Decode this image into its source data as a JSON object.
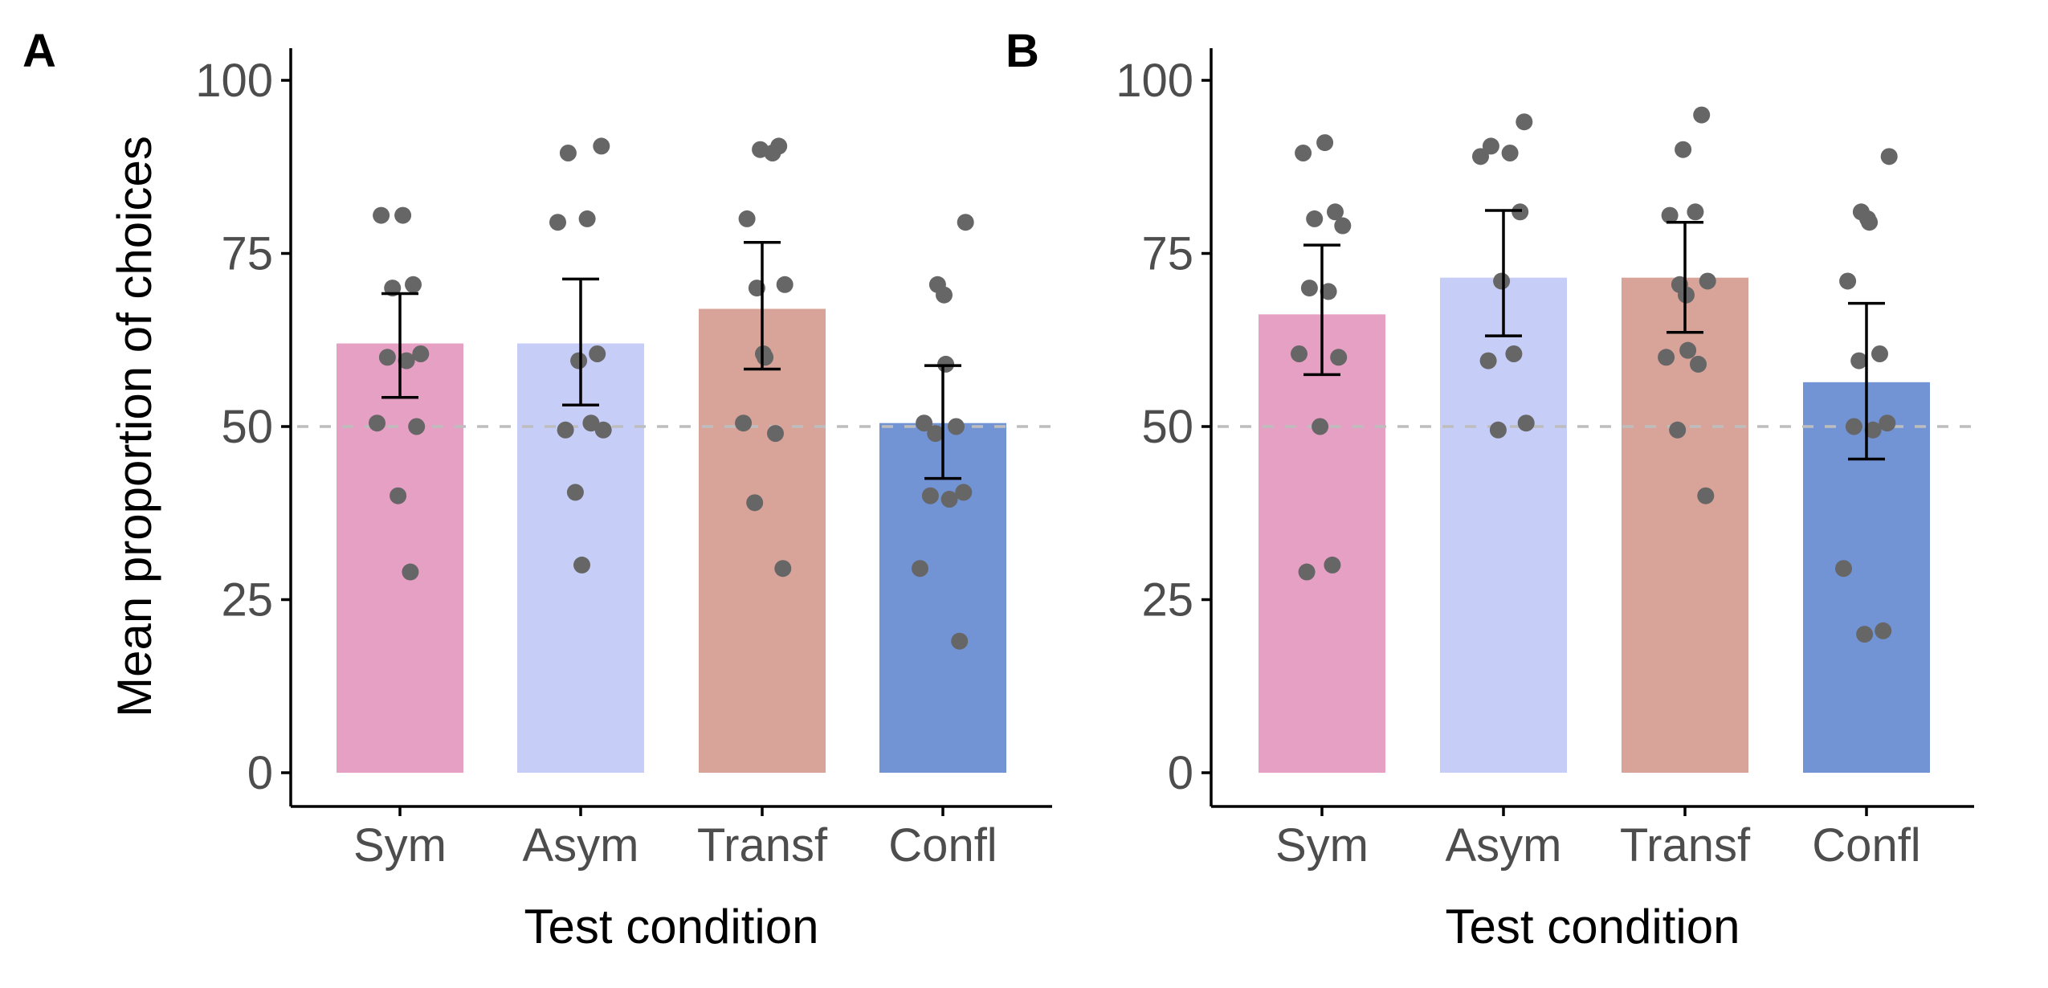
{
  "chart_data": [
    {
      "panel_label": "A",
      "type": "bar",
      "categories": [
        "Sym",
        "Asym",
        "Transf",
        "Confl"
      ],
      "values": [
        62,
        62,
        67,
        50.5
      ],
      "colors": [
        "#e6a0c4",
        "#c6cdf7",
        "#d8a499",
        "#7294d4"
      ],
      "error_bars": [
        {
          "low": 54.2,
          "high": 69.2
        },
        {
          "low": 53.1,
          "high": 71.3
        },
        {
          "low": 58.3,
          "high": 76.6
        },
        {
          "low": 42.5,
          "high": 58.8
        }
      ],
      "points": [
        [
          80.5,
          80.5,
          70.5,
          70,
          60.5,
          60,
          59.5,
          50.5,
          50,
          40,
          29
        ],
        [
          90.5,
          89.5,
          80,
          79.5,
          60.5,
          59.5,
          50.5,
          49.5,
          49.5,
          40.5,
          30
        ],
        [
          90.5,
          90,
          89.5,
          80,
          70.5,
          70,
          60.5,
          60,
          50.5,
          49,
          39,
          29.5
        ],
        [
          79.5,
          70.5,
          69,
          59,
          50.5,
          50,
          49,
          40.5,
          40,
          39.5,
          29.5,
          19
        ]
      ],
      "reference_line": 50,
      "ylim": [
        0,
        100
      ],
      "yticks": [
        "0",
        "25",
        "50",
        "75",
        "100"
      ],
      "ylabel": "Mean proportion of choices",
      "xlabel": "Test condition"
    },
    {
      "panel_label": "B",
      "type": "bar",
      "categories": [
        "Sym",
        "Asym",
        "Transf",
        "Confl"
      ],
      "values": [
        66.2,
        71.5,
        71.5,
        56.4
      ],
      "colors": [
        "#e6a0c4",
        "#c6cdf7",
        "#d8a499",
        "#7294d4"
      ],
      "error_bars": [
        {
          "low": 57.5,
          "high": 76.2
        },
        {
          "low": 63.1,
          "high": 81.2
        },
        {
          "low": 63.6,
          "high": 79.5
        },
        {
          "low": 45.3,
          "high": 67.8
        }
      ],
      "points": [
        [
          91,
          89.5,
          81,
          80,
          79,
          70,
          69.5,
          60.5,
          60,
          50,
          30,
          29
        ],
        [
          94,
          90.5,
          89.5,
          89,
          81,
          71,
          60.5,
          59.5,
          50.5,
          49.5
        ],
        [
          95,
          90,
          81,
          80.5,
          71,
          70.5,
          69,
          61,
          60,
          59,
          49.5,
          40
        ],
        [
          89,
          81,
          80,
          79.5,
          71,
          60.5,
          59.5,
          50.5,
          50,
          49.5,
          29.5,
          20.5,
          20
        ]
      ],
      "reference_line": 50,
      "ylim": [
        0,
        100
      ],
      "yticks": [
        "0",
        "25",
        "50",
        "75",
        "100"
      ],
      "ylabel": "",
      "xlabel": "Test condition"
    }
  ]
}
